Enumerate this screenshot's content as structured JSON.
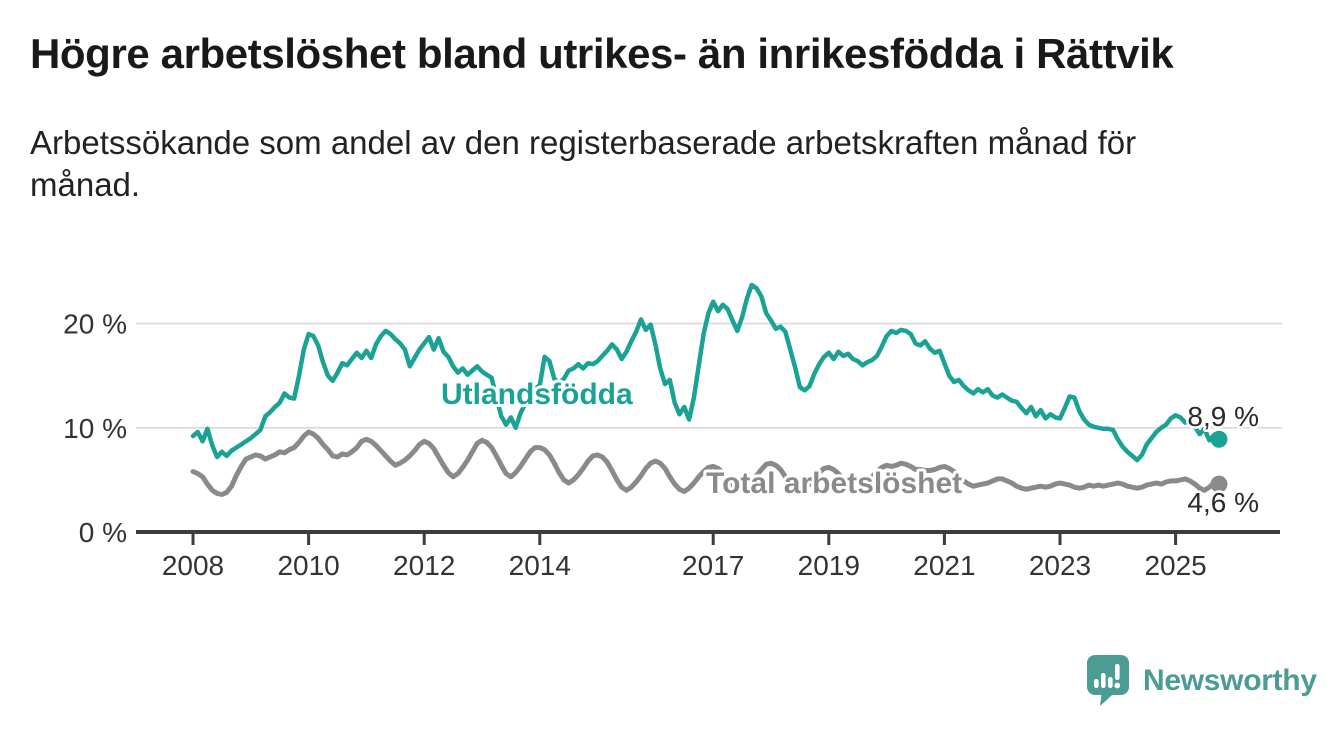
{
  "header": {
    "title": "Högre arbetslöshet bland utrikes- än inrikesfödda i Rättvik",
    "subtitle": "Arbetssökande som andel av den registerbaserade arbetskraften månad för månad."
  },
  "chart_data": {
    "type": "line",
    "unit": "%",
    "x_start_year": 2008,
    "points_per_year": 12,
    "x_ticks": [
      "2008",
      "2010",
      "2012",
      "2014",
      "2017",
      "2019",
      "2021",
      "2023",
      "2025"
    ],
    "y_ticks": [
      {
        "value": 0,
        "label": "0 %"
      },
      {
        "value": 10,
        "label": "10 %"
      },
      {
        "value": 20,
        "label": "20 %"
      }
    ],
    "ylim": [
      0,
      25
    ],
    "grid": "horizontal",
    "legend_position": "inline-labels",
    "series": [
      {
        "name": "Utlandsfödda",
        "color": "#1aa295",
        "end_label": "8,9 %",
        "last_value": 8.9,
        "values": [
          9.2,
          9.6,
          8.7,
          9.9,
          8.3,
          7.2,
          7.7,
          7.3,
          7.8,
          8.1,
          8.4,
          8.7,
          9.0,
          9.4,
          9.8,
          11.1,
          11.5,
          12.0,
          12.4,
          13.3,
          12.9,
          12.8,
          15.0,
          17.5,
          19.0,
          18.8,
          17.9,
          16.3,
          15.0,
          14.5,
          15.3,
          16.2,
          16.0,
          16.6,
          17.2,
          16.7,
          17.4,
          16.7,
          18.0,
          18.8,
          19.3,
          19.0,
          18.5,
          18.1,
          17.5,
          15.9,
          16.7,
          17.5,
          18.1,
          18.7,
          17.5,
          18.6,
          17.3,
          16.8,
          15.9,
          15.3,
          15.7,
          15.1,
          15.5,
          15.9,
          15.4,
          15.1,
          14.8,
          12.9,
          11.1,
          10.3,
          11.0,
          10.0,
          11.4,
          12.3,
          13.1,
          13.7,
          14.1,
          16.8,
          16.4,
          14.7,
          14.3,
          14.7,
          15.5,
          15.7,
          16.1,
          15.7,
          16.2,
          16.1,
          16.4,
          16.9,
          17.4,
          18.0,
          17.5,
          16.6,
          17.3,
          18.3,
          19.2,
          20.4,
          19.4,
          19.9,
          18.0,
          15.7,
          14.2,
          14.6,
          12.4,
          11.3,
          12.0,
          10.8,
          12.9,
          16.0,
          19.0,
          21.0,
          22.1,
          21.2,
          21.8,
          21.4,
          20.3,
          19.3,
          20.6,
          22.4,
          23.7,
          23.4,
          22.6,
          21.0,
          20.3,
          19.5,
          19.7,
          19.2,
          17.5,
          15.8,
          13.9,
          13.6,
          14.0,
          15.2,
          16.1,
          16.8,
          17.2,
          16.6,
          17.3,
          16.9,
          17.1,
          16.6,
          16.4,
          16.0,
          16.3,
          16.5,
          16.9,
          17.8,
          18.8,
          19.3,
          19.1,
          19.4,
          19.3,
          19.0,
          18.1,
          17.9,
          18.3,
          17.6,
          17.2,
          17.4,
          16.2,
          15.0,
          14.4,
          14.6,
          14.0,
          13.6,
          13.3,
          13.7,
          13.4,
          13.7,
          13.1,
          12.9,
          13.2,
          12.9,
          12.6,
          12.5,
          11.9,
          11.4,
          12.0,
          11.1,
          11.7,
          10.9,
          11.3,
          11.0,
          10.9,
          11.9,
          13.0,
          12.9,
          11.6,
          10.8,
          10.3,
          10.1,
          10.0,
          9.9,
          9.9,
          9.8,
          8.9,
          8.2,
          7.7,
          7.3,
          6.9,
          7.4,
          8.4,
          9.0,
          9.6,
          10.0,
          10.3,
          10.9,
          11.2,
          11.0,
          10.5,
          10.7,
          10.1,
          9.4,
          9.9,
          8.8,
          9.3,
          8.9
        ]
      },
      {
        "name": "Total arbetslöshet",
        "color": "#8a8a8a",
        "end_label": "4,6 %",
        "last_value": 4.6,
        "values": [
          5.8,
          5.6,
          5.3,
          4.6,
          4.0,
          3.7,
          3.6,
          3.8,
          4.4,
          5.4,
          6.3,
          7.0,
          7.2,
          7.4,
          7.3,
          7.0,
          7.2,
          7.4,
          7.7,
          7.6,
          7.9,
          8.1,
          8.6,
          9.2,
          9.6,
          9.4,
          9.0,
          8.4,
          7.9,
          7.3,
          7.2,
          7.5,
          7.4,
          7.7,
          8.1,
          8.7,
          8.9,
          8.7,
          8.3,
          7.8,
          7.3,
          6.8,
          6.4,
          6.6,
          6.9,
          7.3,
          7.8,
          8.4,
          8.7,
          8.5,
          8.0,
          7.2,
          6.4,
          5.7,
          5.3,
          5.6,
          6.2,
          6.9,
          7.7,
          8.5,
          8.8,
          8.6,
          8.1,
          7.3,
          6.4,
          5.6,
          5.3,
          5.7,
          6.3,
          7.0,
          7.7,
          8.1,
          8.1,
          7.9,
          7.4,
          6.6,
          5.7,
          5.0,
          4.7,
          5.0,
          5.5,
          6.1,
          6.8,
          7.3,
          7.4,
          7.2,
          6.7,
          5.9,
          5.0,
          4.3,
          4.0,
          4.3,
          4.8,
          5.4,
          6.1,
          6.6,
          6.8,
          6.6,
          6.1,
          5.3,
          4.6,
          4.1,
          3.9,
          4.2,
          4.7,
          5.3,
          5.8,
          6.2,
          6.3,
          6.1,
          5.7,
          5.1,
          4.5,
          4.1,
          4.0,
          4.3,
          4.8,
          5.4,
          6.0,
          6.5,
          6.6,
          6.4,
          6.0,
          5.3,
          4.6,
          4.1,
          3.9,
          4.1,
          4.6,
          5.1,
          5.7,
          6.1,
          6.2,
          6.0,
          5.6,
          5.0,
          4.5,
          4.2,
          4.1,
          4.4,
          4.8,
          5.3,
          5.8,
          6.2,
          6.4,
          6.3,
          6.4,
          6.6,
          6.5,
          6.3,
          6.0,
          6.0,
          5.9,
          5.9,
          6.0,
          6.2,
          6.3,
          6.1,
          5.8,
          5.3,
          4.9,
          4.6,
          4.4,
          4.5,
          4.6,
          4.7,
          4.9,
          5.1,
          5.1,
          4.9,
          4.7,
          4.4,
          4.2,
          4.1,
          4.2,
          4.3,
          4.4,
          4.3,
          4.4,
          4.6,
          4.7,
          4.6,
          4.5,
          4.3,
          4.2,
          4.3,
          4.5,
          4.4,
          4.5,
          4.4,
          4.5,
          4.6,
          4.7,
          4.6,
          4.4,
          4.3,
          4.2,
          4.3,
          4.5,
          4.6,
          4.7,
          4.6,
          4.8,
          4.9,
          4.9,
          5.0,
          5.1,
          4.9,
          4.6,
          4.2,
          4.0,
          4.3,
          4.7,
          4.6
        ]
      }
    ]
  },
  "branding": {
    "name": "Newsworthy",
    "color": "#4a9c94",
    "icon": "newsworthy-speech-bubble-bar-chart-icon"
  }
}
